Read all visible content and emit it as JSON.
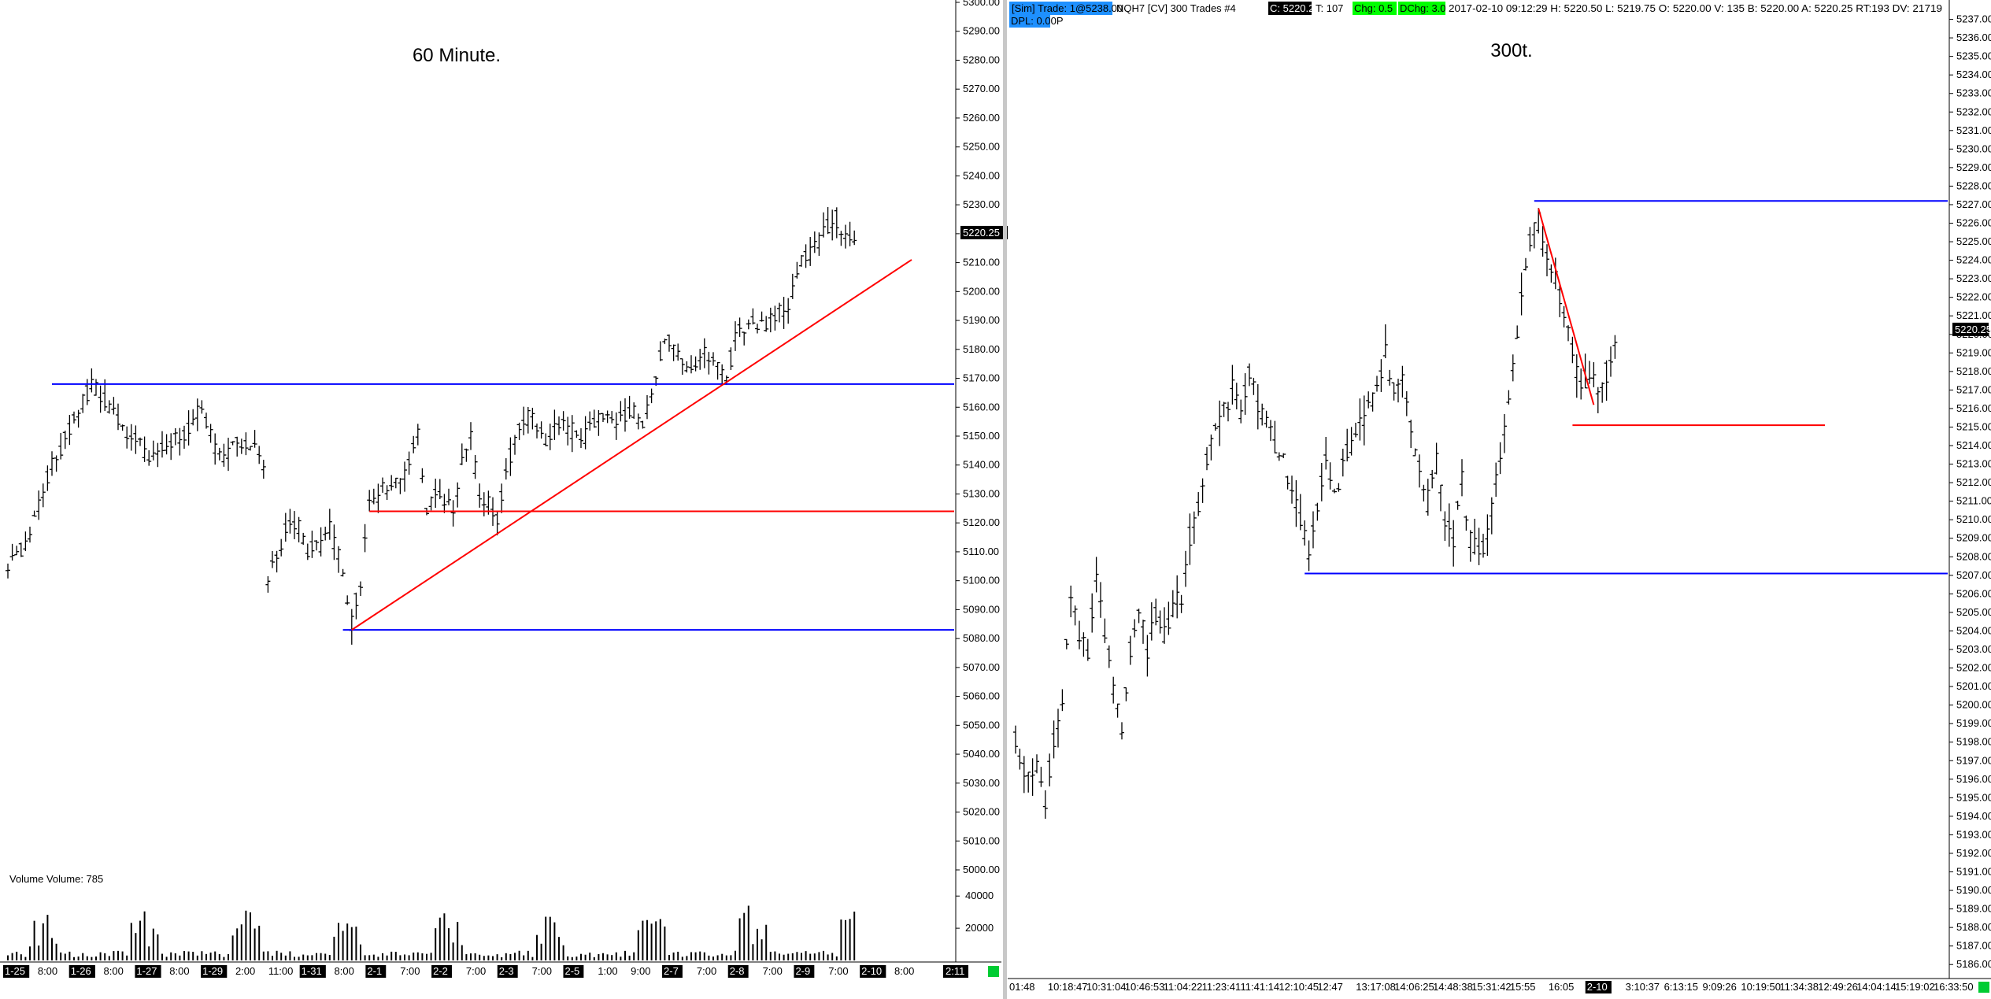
{
  "colors": {
    "background": "#ffffff",
    "bars": "#000000",
    "level_blue": "#0000ff",
    "level_red": "#ff0000",
    "highlight_green": "#00ff00",
    "label_black": "#000000",
    "header_blue": "#1e90ff"
  },
  "left_chart": {
    "title": "60 Minute.",
    "price_tag": "5220.25",
    "volume_label": "Volume  Volume: 785",
    "corner_x_label": "2:11",
    "y_ticks": [
      "5300.00",
      "5290.00",
      "5280.00",
      "5270.00",
      "5260.00",
      "5250.00",
      "5240.00",
      "5230.00",
      "5220.00",
      "5210.00",
      "5200.00",
      "5190.00",
      "5180.00",
      "5170.00",
      "5160.00",
      "5150.00",
      "5140.00",
      "5130.00",
      "5120.00",
      "5110.00",
      "5100.00",
      "5090.00",
      "5080.00",
      "5070.00",
      "5060.00",
      "5050.00",
      "5040.00",
      "5030.00",
      "5020.00",
      "5010.00",
      "5000.00"
    ],
    "volume_ticks": [
      "40000",
      "20000"
    ],
    "x_ticks": [
      {
        "label": "1-25",
        "boxed": true
      },
      {
        "label": "8:00",
        "boxed": false
      },
      {
        "label": "1-26",
        "boxed": true
      },
      {
        "label": "8:00",
        "boxed": false
      },
      {
        "label": "1-27",
        "boxed": true
      },
      {
        "label": "8:00",
        "boxed": false
      },
      {
        "label": "1-29",
        "boxed": true
      },
      {
        "label": "2:00",
        "boxed": false
      },
      {
        "label": "11:00",
        "boxed": false
      },
      {
        "label": "1-31",
        "boxed": true
      },
      {
        "label": "8:00",
        "boxed": false
      },
      {
        "label": "2-1",
        "boxed": true
      },
      {
        "label": "7:00",
        "boxed": false
      },
      {
        "label": "2-2",
        "boxed": true
      },
      {
        "label": "7:00",
        "boxed": false
      },
      {
        "label": "2-3",
        "boxed": true
      },
      {
        "label": "7:00",
        "boxed": false
      },
      {
        "label": "2-5",
        "boxed": true
      },
      {
        "label": "1:00",
        "boxed": false
      },
      {
        "label": "9:00",
        "boxed": false
      },
      {
        "label": "2-7",
        "boxed": true
      },
      {
        "label": "7:00",
        "boxed": false
      },
      {
        "label": "2-8",
        "boxed": true
      },
      {
        "label": "7:00",
        "boxed": false
      },
      {
        "label": "2-9",
        "boxed": true
      },
      {
        "label": "7:00",
        "boxed": false
      },
      {
        "label": "2-10",
        "boxed": true
      },
      {
        "label": "8:00",
        "boxed": false
      }
    ]
  },
  "right_chart": {
    "title": "300t.",
    "price_tag": "5220.25",
    "header": {
      "sim": "[Sim]",
      "trade": "Trade: 1@5238.00",
      "instrument": "NQH7 [CV]  300 Trades  #4",
      "close": "C: 5220.25",
      "t": "T: 107",
      "chg": "Chg: 0.5",
      "dchg": "DChg: 3.0",
      "info": "2017-02-10 09:12:29 H: 5220.50 L: 5219.75 O: 5220.00 V: 135 B: 5220.00 A: 5220.25 RT:193 DV: 21719",
      "dpl": "DPL: 0.00P"
    },
    "y_ticks": [
      "5237.00",
      "5236.00",
      "5235.00",
      "5234.00",
      "5233.00",
      "5232.00",
      "5231.00",
      "5230.00",
      "5229.00",
      "5228.00",
      "5227.00",
      "5226.00",
      "5225.00",
      "5224.00",
      "5223.00",
      "5222.00",
      "5221.00",
      "5220.00",
      "5219.00",
      "5218.00",
      "5217.00",
      "5216.00",
      "5215.00",
      "5214.00",
      "5213.00",
      "5212.00",
      "5211.00",
      "5210.00",
      "5209.00",
      "5208.00",
      "5207.00",
      "5206.00",
      "5205.00",
      "5204.00",
      "5203.00",
      "5202.00",
      "5201.00",
      "5200.00",
      "5199.00",
      "5198.00",
      "5197.00",
      "5196.00",
      "5195.00",
      "5194.00",
      "5193.00",
      "5192.00",
      "5191.00",
      "5190.00",
      "5189.00",
      "5188.00",
      "5187.00",
      "5186.00"
    ],
    "x_ticks": [
      {
        "label": "01:48",
        "boxed": false
      },
      {
        "label": "10:18:47",
        "boxed": false
      },
      {
        "label": "10:31:04",
        "boxed": false
      },
      {
        "label": "10:46:53",
        "boxed": false
      },
      {
        "label": "11:04:22",
        "boxed": false
      },
      {
        "label": "11:23:41",
        "boxed": false
      },
      {
        "label": "11:41:14",
        "boxed": false
      },
      {
        "label": "12:10:45",
        "boxed": false
      },
      {
        "label": "12:47",
        "boxed": false
      },
      {
        "label": "13:17:08",
        "boxed": false
      },
      {
        "label": "14:06:25",
        "boxed": false
      },
      {
        "label": "14:48:38",
        "boxed": false
      },
      {
        "label": "15:31:42",
        "boxed": false
      },
      {
        "label": "15:55",
        "boxed": false
      },
      {
        "label": "16:05",
        "boxed": false
      },
      {
        "label": "2-10",
        "boxed": true
      },
      {
        "label": "3:10:37",
        "boxed": false
      },
      {
        "label": "6:13:15",
        "boxed": false
      },
      {
        "label": "9:09:26",
        "boxed": false
      },
      {
        "label": "10:19:50",
        "boxed": false
      },
      {
        "label": "11:34:38",
        "boxed": false
      },
      {
        "label": "12:49:26",
        "boxed": false
      },
      {
        "label": "14:04:14",
        "boxed": false
      },
      {
        "label": "15:19:02",
        "boxed": false
      },
      {
        "label": "16:33:50",
        "boxed": false
      }
    ]
  },
  "chart_data": [
    {
      "type": "bar",
      "subtype": "ohlc",
      "title": "60 Minute.",
      "xlabel": "",
      "ylabel": "",
      "ylim": [
        5000,
        5300
      ],
      "grid": false,
      "path_anchors": [
        [
          0,
          5105
        ],
        [
          4,
          5112
        ],
        [
          10,
          5140
        ],
        [
          14,
          5152
        ],
        [
          19,
          5168
        ],
        [
          23,
          5160
        ],
        [
          28,
          5150
        ],
        [
          32,
          5142
        ],
        [
          37,
          5148
        ],
        [
          41,
          5152
        ],
        [
          44,
          5160
        ],
        [
          46,
          5152
        ],
        [
          48,
          5142
        ],
        [
          52,
          5148
        ],
        [
          56,
          5145
        ],
        [
          58,
          5138
        ],
        [
          59,
          5100
        ],
        [
          62,
          5112
        ],
        [
          64,
          5122
        ],
        [
          66,
          5118
        ],
        [
          68,
          5110
        ],
        [
          71,
          5112
        ],
        [
          73,
          5118
        ],
        [
          75,
          5108
        ],
        [
          78,
          5085
        ],
        [
          80,
          5100
        ],
        [
          82,
          5128
        ],
        [
          86,
          5132
        ],
        [
          90,
          5138
        ],
        [
          93,
          5150
        ],
        [
          95,
          5125
        ],
        [
          97,
          5132
        ],
        [
          99,
          5128
        ],
        [
          101,
          5124
        ],
        [
          103,
          5140
        ],
        [
          105,
          5150
        ],
        [
          107,
          5130
        ],
        [
          109,
          5126
        ],
        [
          111,
          5120
        ],
        [
          113,
          5140
        ],
        [
          116,
          5152
        ],
        [
          119,
          5158
        ],
        [
          122,
          5148
        ],
        [
          125,
          5155
        ],
        [
          128,
          5152
        ],
        [
          131,
          5150
        ],
        [
          135,
          5158
        ],
        [
          138,
          5153
        ],
        [
          141,
          5160
        ],
        [
          144,
          5155
        ],
        [
          147,
          5168
        ],
        [
          149,
          5185
        ],
        [
          152,
          5180
        ],
        [
          155,
          5172
        ],
        [
          158,
          5180
        ],
        [
          161,
          5175
        ],
        [
          163,
          5168
        ],
        [
          165,
          5185
        ],
        [
          168,
          5190
        ],
        [
          171,
          5188
        ],
        [
          174,
          5192
        ],
        [
          177,
          5195
        ],
        [
          180,
          5210
        ],
        [
          183,
          5215
        ],
        [
          186,
          5222
        ],
        [
          188,
          5225
        ],
        [
          190,
          5218
        ],
        [
          192,
          5220
        ]
      ],
      "levels": [
        {
          "color": "blue",
          "price": 5168,
          "from_bar": 10
        },
        {
          "color": "blue",
          "price": 5083,
          "from_bar": 76
        },
        {
          "color": "red",
          "price": 5124,
          "from_bar": 82
        }
      ],
      "trendline": {
        "color": "red",
        "from": [
          78,
          5083
        ],
        "to": [
          205,
          5211
        ]
      },
      "volume": {
        "ylim": [
          0,
          45000
        ]
      }
    },
    {
      "type": "bar",
      "subtype": "ohlc",
      "title": "300t.",
      "xlabel": "",
      "ylabel": "",
      "ylim": [
        5185.5,
        5238
      ],
      "grid": false,
      "path_anchors": [
        [
          0,
          5198
        ],
        [
          3,
          5196
        ],
        [
          5,
          5197
        ],
        [
          7,
          5195
        ],
        [
          9,
          5198
        ],
        [
          11,
          5200
        ],
        [
          13,
          5206
        ],
        [
          15,
          5204
        ],
        [
          17,
          5203
        ],
        [
          19,
          5207
        ],
        [
          21,
          5204
        ],
        [
          23,
          5201
        ],
        [
          25,
          5199
        ],
        [
          27,
          5203
        ],
        [
          29,
          5205
        ],
        [
          31,
          5203
        ],
        [
          33,
          5205
        ],
        [
          35,
          5204
        ],
        [
          37,
          5205
        ],
        [
          39,
          5206
        ],
        [
          41,
          5209
        ],
        [
          43,
          5211
        ],
        [
          45,
          5213
        ],
        [
          47,
          5215
        ],
        [
          49,
          5216
        ],
        [
          51,
          5217
        ],
        [
          53,
          5216
        ],
        [
          55,
          5218
        ],
        [
          57,
          5216
        ],
        [
          59,
          5215
        ],
        [
          61,
          5214
        ],
        [
          63,
          5213
        ],
        [
          65,
          5211
        ],
        [
          67,
          5210
        ],
        [
          69,
          5208
        ],
        [
          71,
          5211
        ],
        [
          73,
          5213
        ],
        [
          75,
          5211
        ],
        [
          77,
          5213
        ],
        [
          79,
          5214
        ],
        [
          81,
          5215
        ],
        [
          83,
          5216
        ],
        [
          85,
          5217
        ],
        [
          87,
          5219
        ],
        [
          89,
          5217
        ],
        [
          91,
          5218
        ],
        [
          93,
          5215
        ],
        [
          95,
          5213
        ],
        [
          97,
          5211
        ],
        [
          99,
          5213
        ],
        [
          101,
          5210
        ],
        [
          103,
          5209
        ],
        [
          105,
          5212
        ],
        [
          107,
          5209
        ],
        [
          109,
          5208
        ],
        [
          111,
          5209
        ],
        [
          113,
          5212
        ],
        [
          115,
          5215
        ],
        [
          117,
          5218
        ],
        [
          119,
          5222
        ],
        [
          121,
          5225
        ],
        [
          123,
          5226
        ],
        [
          125,
          5224
        ],
        [
          127,
          5223
        ],
        [
          129,
          5221
        ],
        [
          131,
          5219
        ],
        [
          133,
          5217
        ],
        [
          135,
          5218
        ],
        [
          137,
          5217
        ],
        [
          139,
          5218
        ],
        [
          141,
          5220
        ]
      ],
      "levels": [
        {
          "color": "blue",
          "price": 5227.2,
          "from_bar": 122
        },
        {
          "color": "blue",
          "price": 5207.1,
          "from_bar": 68
        },
        {
          "color": "red",
          "price": 5215.1,
          "from_bar": 131
        }
      ],
      "trendline": {
        "color": "red",
        "from": [
          123,
          5226.8
        ],
        "to": [
          136,
          5216.2
        ]
      }
    }
  ]
}
